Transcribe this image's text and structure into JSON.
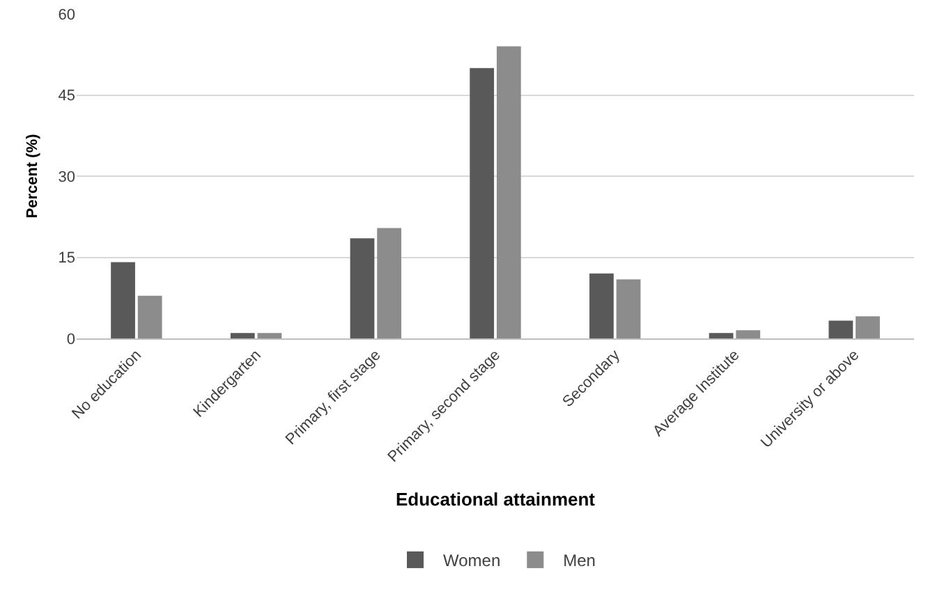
{
  "chart_data": {
    "type": "bar",
    "xlabel": "Educational attainment",
    "ylabel": "Percent (%)",
    "categories": [
      "No education",
      "Kindergarten",
      "Primary, first stage",
      "Primary, second stage",
      "Secondary",
      "Average Institute",
      "University or above"
    ],
    "series": [
      {
        "name": "Women",
        "color": "#595959",
        "values": [
          14.1,
          1,
          18.5,
          50,
          12,
          1,
          3.3
        ]
      },
      {
        "name": "Men",
        "color": "#8c8c8c",
        "values": [
          7.9,
          1,
          20.4,
          54,
          10.9,
          1.5,
          4.1
        ]
      }
    ],
    "ylim": [
      0,
      60
    ],
    "yticks": [
      0,
      15,
      30,
      45,
      60
    ],
    "grid": "y",
    "legend": "bottom"
  }
}
